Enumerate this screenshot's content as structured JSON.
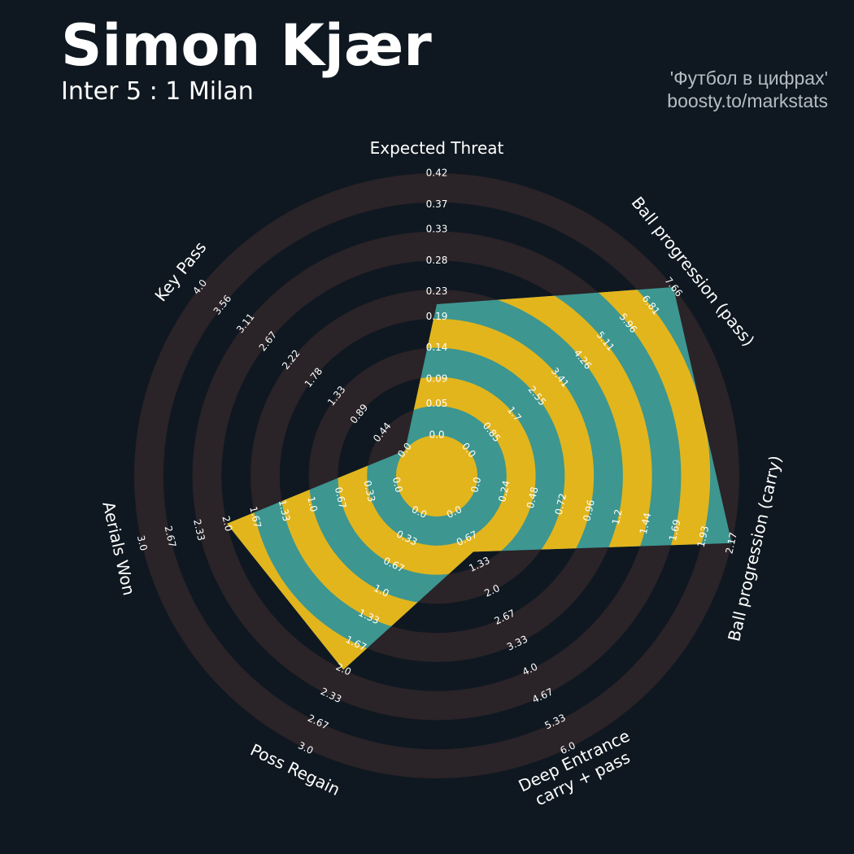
{
  "chart_data": {
    "type": "radar",
    "title": "Simon Kjær",
    "subtitle": "Inter 5 : 1 Milan",
    "credits": [
      "'Футбол в цифрах'",
      "boosty.to/markstats"
    ],
    "colors": {
      "background": "#0f1820",
      "ring": "#2a2328",
      "fill": "#3d9690",
      "alt_fill": "#e2b51d"
    },
    "params": [
      {
        "label": [
          "Expected Threat"
        ],
        "lim": [
          0,
          0.42
        ],
        "value": 0.21,
        "ticks": [
          {
            "value": 0,
            "label": "0.0"
          },
          0.05,
          0.09,
          0.14,
          0.19,
          0.23,
          0.28,
          0.33,
          0.37,
          0.42
        ]
      },
      {
        "label": [
          "Ball progression (pass)"
        ],
        "lim": [
          0,
          7.66
        ],
        "value": 7.66,
        "ticks": [
          {
            "value": 0,
            "label": "0.0"
          },
          0.85,
          1.7,
          2.55,
          3.41,
          4.26,
          5.11,
          5.96,
          6.81,
          7.66
        ]
      },
      {
        "label": [
          "Ball progression (carry)"
        ],
        "lim": [
          0,
          2.17
        ],
        "value": 2.17,
        "ticks": [
          {
            "value": 0,
            "label": "0.0"
          },
          0.24,
          0.48,
          0.72,
          0.96,
          1.2,
          1.44,
          1.69,
          1.93,
          2.17
        ]
      },
      {
        "label": [
          "Deep Entrance",
          "carry + pass"
        ],
        "lim": [
          0,
          6
        ],
        "value": 1,
        "ticks": [
          {
            "value": 0,
            "label": "0.0"
          },
          0.67,
          1.33,
          {
            "value": 2,
            "label": "2.0"
          },
          2.67,
          3.33,
          {
            "value": 4,
            "label": "4.0"
          },
          4.67,
          5.33,
          {
            "value": 6,
            "label": "6.0"
          }
        ]
      },
      {
        "label": [
          "Poss Regain"
        ],
        "lim": [
          0,
          3
        ],
        "value": 2,
        "ticks": [
          {
            "value": 0,
            "label": "0.0"
          },
          0.33,
          0.67,
          {
            "value": 1,
            "label": "1.0"
          },
          1.33,
          1.67,
          {
            "value": 2,
            "label": "2.0"
          },
          2.33,
          2.67,
          {
            "value": 3,
            "label": "3.0"
          }
        ]
      },
      {
        "label": [
          "Aerials Won"
        ],
        "lim": [
          0,
          3
        ],
        "value": 2,
        "ticks": [
          {
            "value": 0,
            "label": "0.0"
          },
          0.33,
          0.67,
          {
            "value": 1,
            "label": "1.0"
          },
          1.33,
          1.67,
          {
            "value": 2,
            "label": "2.0"
          },
          2.33,
          2.67,
          {
            "value": 3,
            "label": "3.0"
          }
        ]
      },
      {
        "label": [
          "Key Pass"
        ],
        "lim": [
          0,
          4
        ],
        "value": 0,
        "ticks": [
          {
            "value": 0,
            "label": "0.0"
          },
          0.44,
          0.89,
          1.33,
          1.78,
          2.22,
          2.67,
          3.11,
          3.56,
          {
            "value": 4,
            "label": "4.0"
          }
        ]
      }
    ]
  }
}
